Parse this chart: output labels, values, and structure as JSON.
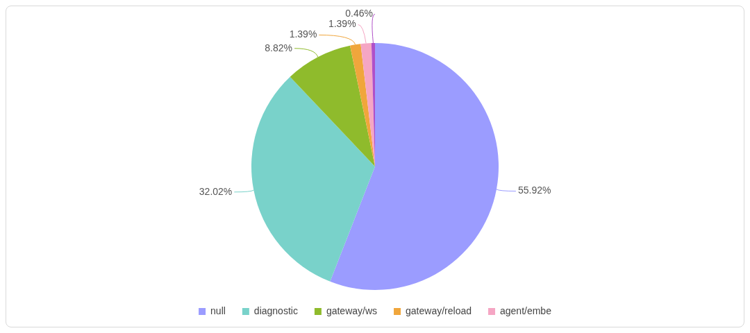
{
  "chart_data": {
    "type": "pie",
    "categories": [
      "null",
      "diagnostic",
      "gateway/ws",
      "gateway/reload",
      "agent/embe",
      null
    ],
    "values": [
      55.92,
      32.02,
      8.82,
      1.39,
      1.39,
      0.46
    ],
    "colors": [
      "#9b9cff",
      "#79d2ca",
      "#8fbb2c",
      "#f0a63c",
      "#f5a6c4",
      "#b050c8"
    ],
    "value_labels": [
      "55.92%",
      "32.02%",
      "8.82%",
      "1.39%",
      "1.39%",
      "0.46%"
    ],
    "legend": "bottom"
  }
}
